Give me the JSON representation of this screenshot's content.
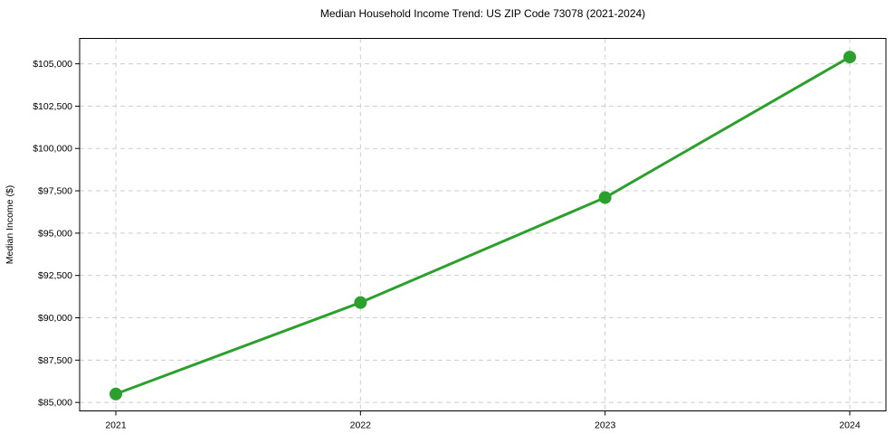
{
  "chart_data": {
    "type": "line",
    "title": "Median Household Income Trend: US ZIP Code 73078 (2021-2024)",
    "xlabel": "",
    "ylabel": "Median Income ($)",
    "categories": [
      "2021",
      "2022",
      "2023",
      "2024"
    ],
    "series": [
      {
        "name": "Median Household Income",
        "values": [
          85500,
          90900,
          97100,
          105400
        ],
        "color": "#2ca02c",
        "marker": "circle"
      }
    ],
    "ylim": [
      84500,
      106500
    ],
    "yticks": [
      85000,
      87500,
      90000,
      92500,
      95000,
      97500,
      100000,
      102500,
      105000
    ],
    "ytick_prefix": "$",
    "grid": true,
    "grid_axis": "both",
    "grid_style": "dashed",
    "legend_position": "none",
    "line_width": 3,
    "marker_size": 7
  },
  "style": {
    "line_color": "#2ca02c",
    "grid_color": "#cdcdcd",
    "axis_color": "#000000",
    "text_color": "#000000",
    "background": "#ffffff",
    "tick_font_size": 10.5,
    "title_font_size": 12
  }
}
